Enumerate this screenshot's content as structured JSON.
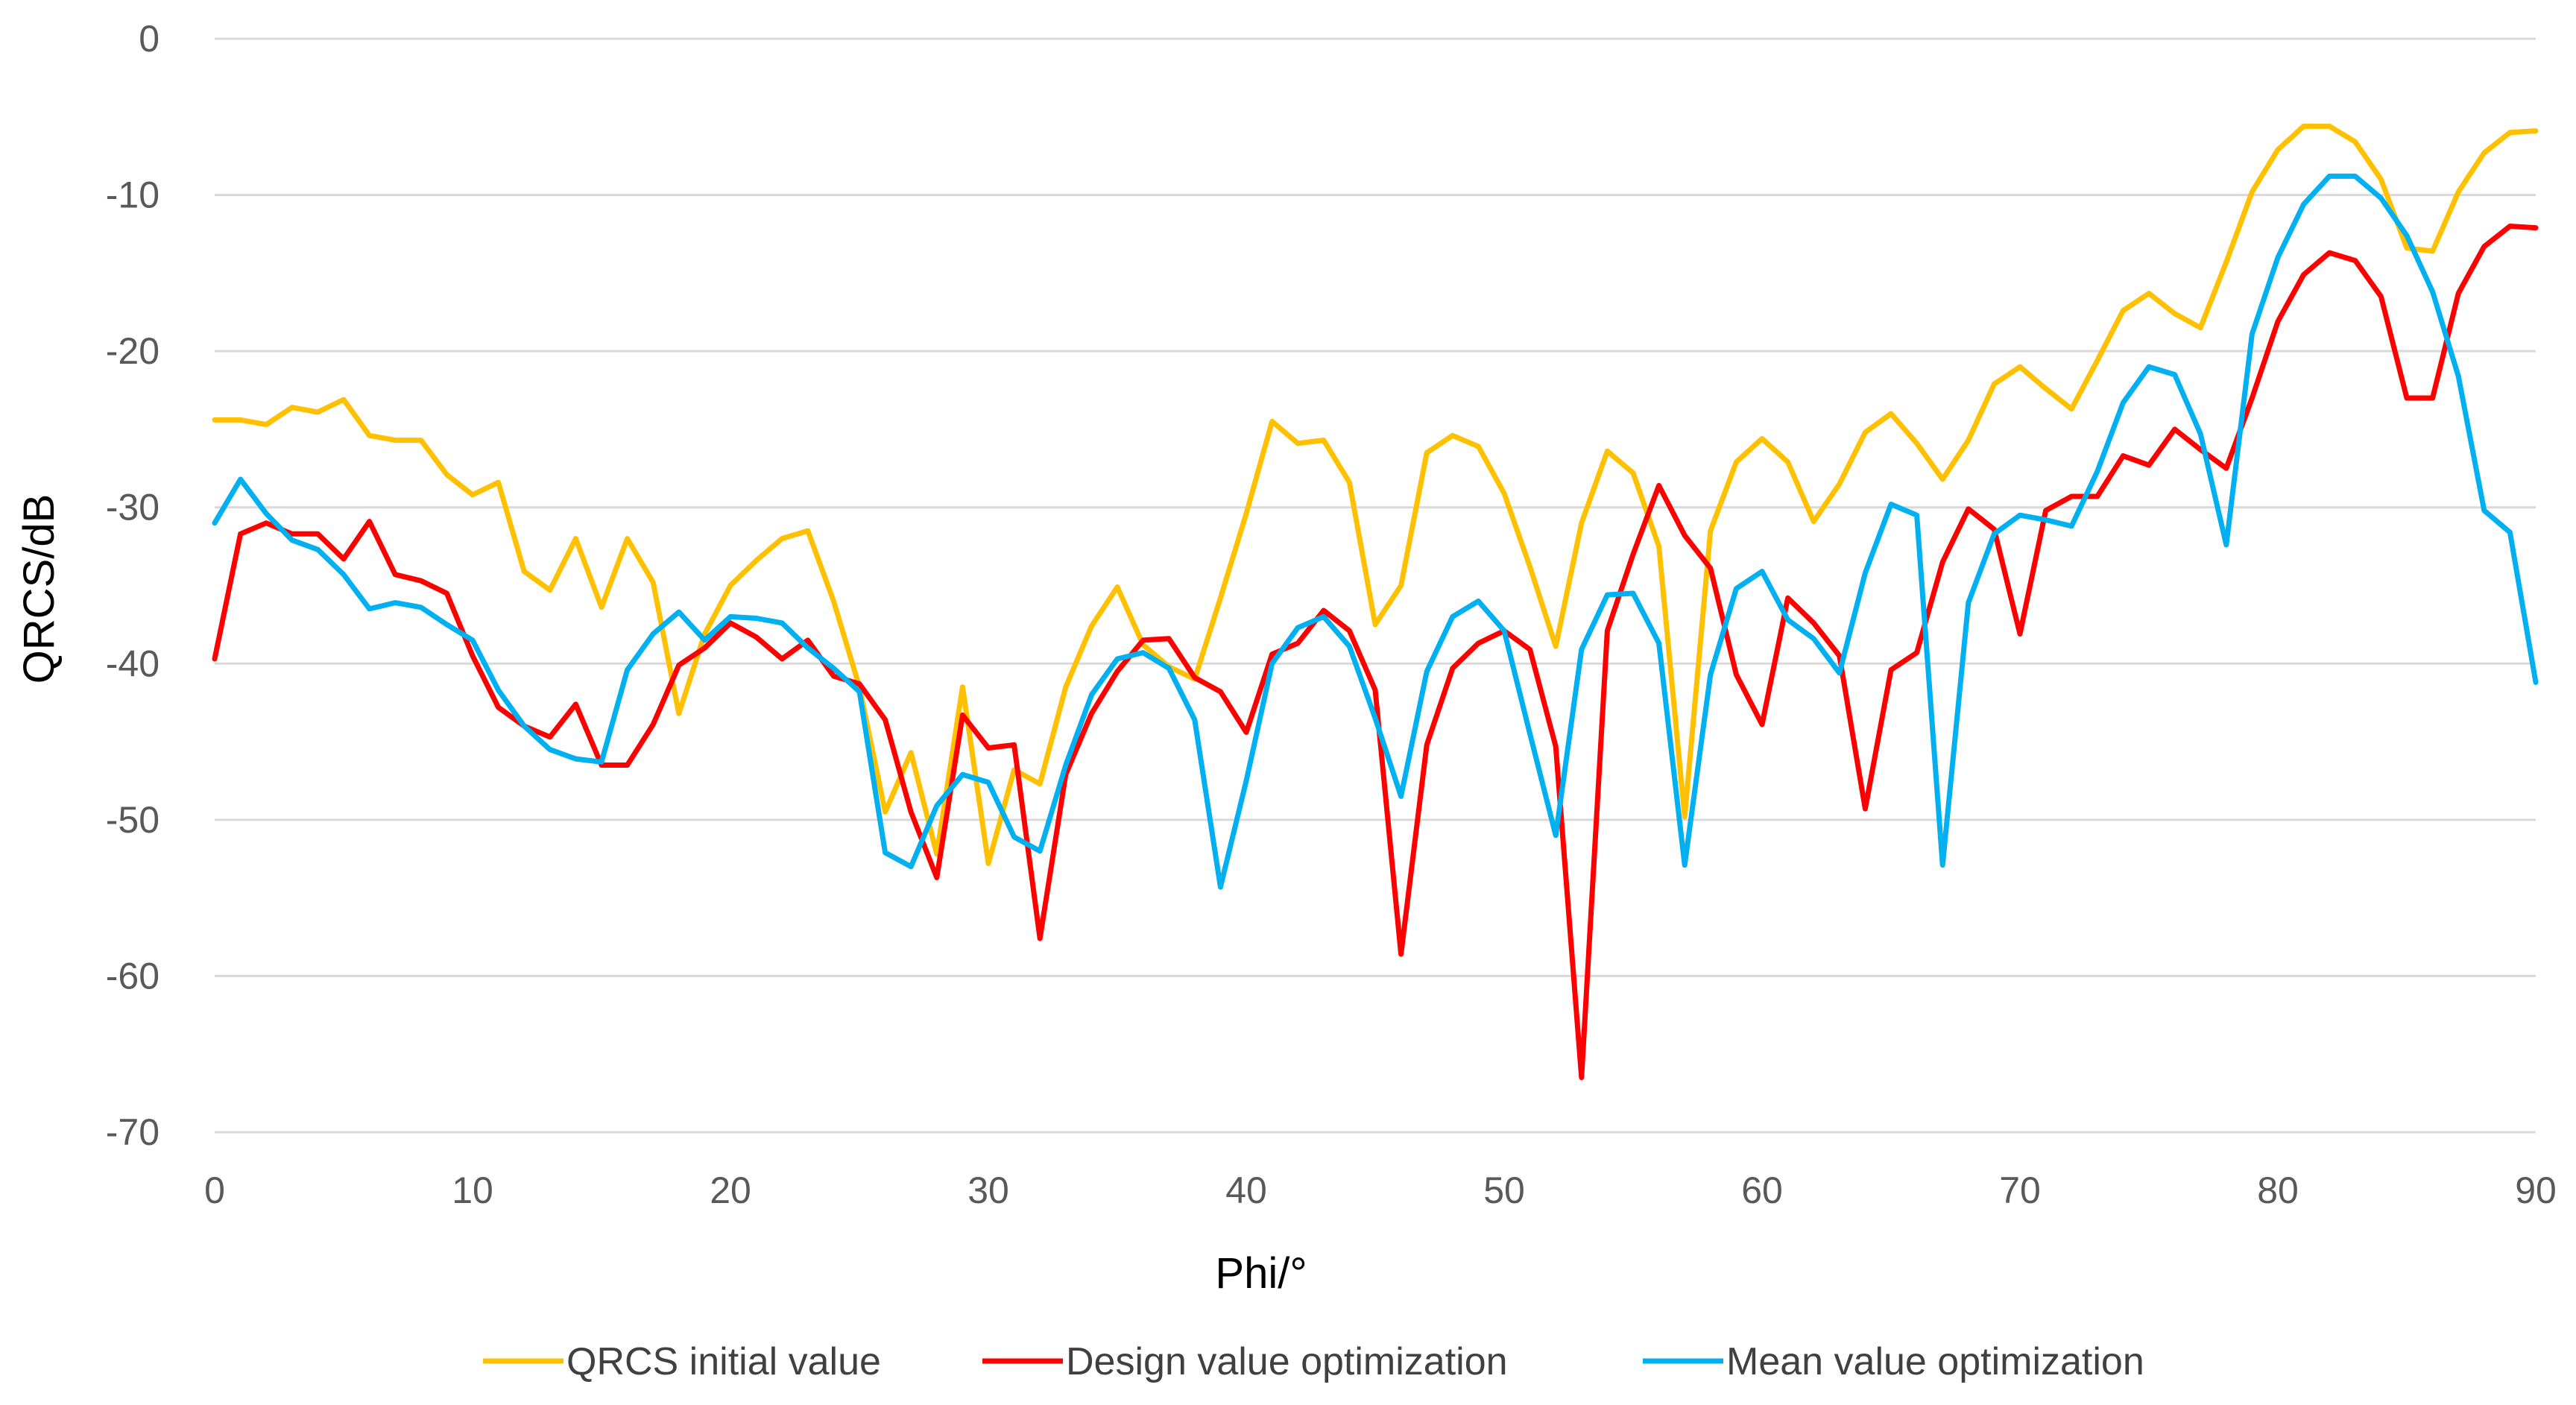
{
  "chart_data": {
    "type": "line",
    "title": "",
    "xlabel": "Phi/°",
    "ylabel": "QRCS/dB",
    "xlim": [
      0,
      90
    ],
    "ylim": [
      -70,
      0
    ],
    "x_ticks": [
      0,
      10,
      20,
      30,
      40,
      50,
      60,
      70,
      80,
      90
    ],
    "y_ticks": [
      0,
      -10,
      -20,
      -30,
      -40,
      -50,
      -60,
      -70
    ],
    "grid": true,
    "legend_position": "bottom",
    "x": [
      0,
      1,
      2,
      3,
      4,
      5,
      6,
      7,
      8,
      9,
      10,
      11,
      12,
      13,
      14,
      15,
      16,
      17,
      18,
      19,
      20,
      21,
      22,
      23,
      24,
      25,
      26,
      27,
      28,
      29,
      30,
      31,
      32,
      33,
      34,
      35,
      36,
      37,
      38,
      39,
      40,
      41,
      42,
      43,
      44,
      45,
      46,
      47,
      48,
      49,
      50,
      51,
      52,
      53,
      54,
      55,
      56,
      57,
      58,
      59,
      60,
      61,
      62,
      63,
      64,
      65,
      66,
      67,
      68,
      69,
      70,
      71,
      72,
      73,
      74,
      75,
      76,
      77,
      78,
      79,
      80,
      81,
      82,
      83,
      84,
      85,
      86,
      87,
      88,
      89,
      90
    ],
    "series": [
      {
        "name": "QRCS initial value",
        "color": "#ffc000",
        "values": [
          -24.4,
          -24.4,
          -24.7,
          -23.6,
          -23.9,
          -23.1,
          -25.4,
          -25.7,
          -25.7,
          -27.9,
          -29.2,
          -28.4,
          -34.1,
          -35.3,
          -32.0,
          -36.4,
          -32.0,
          -34.8,
          -43.2,
          -38.1,
          -35.0,
          -33.4,
          -32.0,
          -31.5,
          -36.0,
          -41.5,
          -49.5,
          -45.7,
          -52.2,
          -41.5,
          -52.8,
          -46.8,
          -47.7,
          -41.5,
          -37.6,
          -35.1,
          -38.8,
          -40.2,
          -41.0,
          -35.8,
          -30.4,
          -24.5,
          -25.9,
          -25.7,
          -28.4,
          -37.5,
          -35.0,
          -26.5,
          -25.4,
          -26.1,
          -29.1,
          -33.8,
          -38.9,
          -31.0,
          -26.4,
          -27.8,
          -32.5,
          -49.8,
          -31.5,
          -27.1,
          -25.6,
          -27.1,
          -30.9,
          -28.5,
          -25.2,
          -24.0,
          -25.9,
          -28.2,
          -25.7,
          -22.1,
          -21.0,
          -22.4,
          -23.7,
          -20.6,
          -17.4,
          -16.3,
          -17.6,
          -18.5,
          -14.3,
          -9.8,
          -7.1,
          -5.6,
          -5.6,
          -6.6,
          -9.0,
          -13.4,
          -13.6,
          -9.8,
          -7.3,
          -6.0,
          -5.9
        ]
      },
      {
        "name": "Design value optimization",
        "color": "#ff0000",
        "values": [
          -39.7,
          -31.7,
          -31.0,
          -31.7,
          -31.7,
          -33.3,
          -30.9,
          -34.3,
          -34.7,
          -35.5,
          -39.5,
          -42.8,
          -44.0,
          -44.7,
          -42.6,
          -46.5,
          -46.5,
          -43.9,
          -40.1,
          -39.0,
          -37.4,
          -38.3,
          -39.7,
          -38.5,
          -40.8,
          -41.3,
          -43.6,
          -49.5,
          -53.7,
          -43.3,
          -45.4,
          -45.2,
          -57.6,
          -47.1,
          -43.2,
          -40.5,
          -38.5,
          -38.4,
          -40.9,
          -41.8,
          -44.4,
          -39.4,
          -38.7,
          -36.6,
          -37.9,
          -41.7,
          -58.6,
          -45.2,
          -40.3,
          -38.7,
          -37.9,
          -39.1,
          -45.3,
          -66.5,
          -37.9,
          -33.0,
          -28.6,
          -31.8,
          -33.9,
          -40.7,
          -43.9,
          -35.8,
          -37.4,
          -39.5,
          -49.3,
          -40.4,
          -39.3,
          -33.5,
          -30.1,
          -31.4,
          -38.1,
          -30.2,
          -29.3,
          -29.3,
          -26.7,
          -27.3,
          -25.0,
          -26.3,
          -27.5,
          -23.0,
          -18.1,
          -15.1,
          -13.7,
          -14.2,
          -16.5,
          -23.0,
          -23.0,
          -16.3,
          -13.3,
          -12.0,
          -12.1
        ]
      },
      {
        "name": "Mean value optimization",
        "color": "#00b0f0",
        "values": [
          -31.0,
          -28.2,
          -30.4,
          -32.1,
          -32.7,
          -34.3,
          -36.5,
          -36.1,
          -36.4,
          -37.5,
          -38.5,
          -41.7,
          -44.0,
          -45.5,
          -46.1,
          -46.3,
          -40.4,
          -38.1,
          -36.7,
          -38.5,
          -37.0,
          -37.1,
          -37.4,
          -39.0,
          -40.3,
          -41.8,
          -52.1,
          -53.0,
          -49.1,
          -47.1,
          -47.6,
          -51.1,
          -52.0,
          -46.5,
          -42.0,
          -39.7,
          -39.3,
          -40.3,
          -43.6,
          -54.3,
          -47.5,
          -40.0,
          -37.7,
          -37.0,
          -38.9,
          -43.5,
          -48.5,
          -40.5,
          -37.0,
          -36.0,
          -37.9,
          -44.5,
          -51.0,
          -39.1,
          -35.6,
          -35.5,
          -38.7,
          -52.9,
          -40.7,
          -35.2,
          -34.1,
          -37.2,
          -38.4,
          -40.6,
          -34.2,
          -29.8,
          -30.5,
          -52.9,
          -36.1,
          -31.7,
          -30.5,
          -30.8,
          -31.2,
          -27.7,
          -23.3,
          -21.0,
          -21.5,
          -25.3,
          -32.4,
          -18.9,
          -14.0,
          -10.6,
          -8.8,
          -8.8,
          -10.2,
          -12.6,
          -16.2,
          -21.6,
          -30.2,
          -31.6,
          -41.2
        ]
      }
    ]
  }
}
